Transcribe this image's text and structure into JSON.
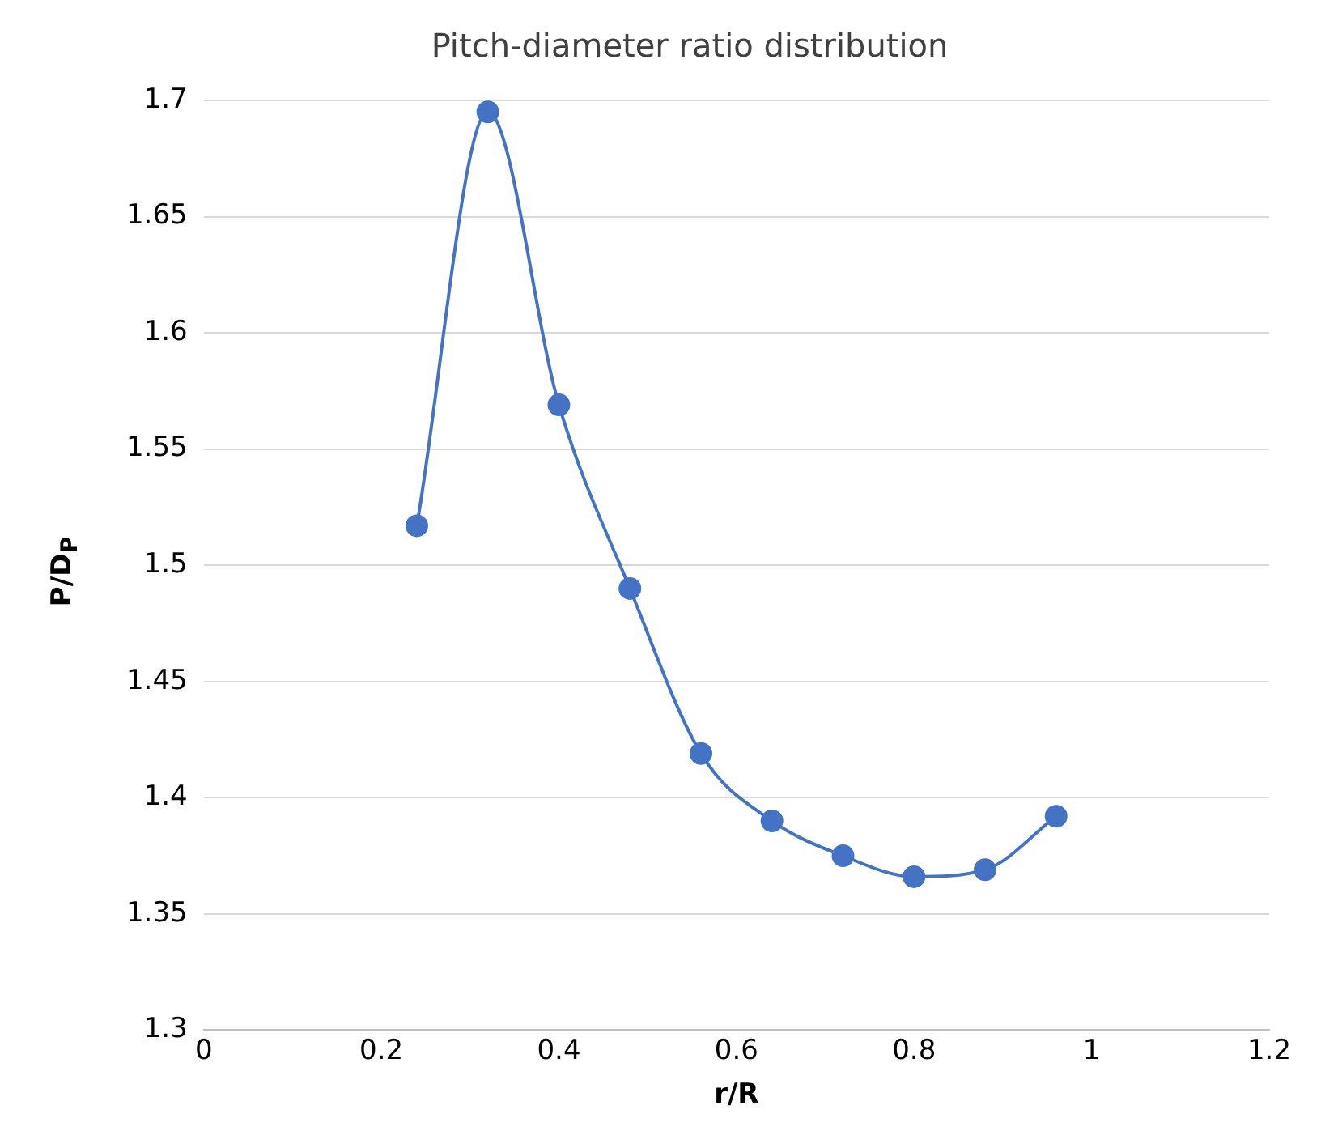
{
  "chart_data": {
    "type": "line",
    "title": "Pitch-diameter ratio distribution",
    "xlabel": "r/R",
    "ylabel": "P/D$_{P}$",
    "x": [
      0.24,
      0.32,
      0.4,
      0.48,
      0.56,
      0.64,
      0.72,
      0.8,
      0.88,
      0.96
    ],
    "series": [
      {
        "color": "#4472c4",
        "values": [
          1.517,
          1.695,
          1.569,
          1.49,
          1.419,
          1.39,
          1.375,
          1.366,
          1.369,
          1.392
        ]
      }
    ],
    "xlim": [
      0,
      1.2
    ],
    "xticks": [
      0,
      0.2,
      0.4,
      0.6,
      0.8,
      1,
      1.2
    ],
    "ylim": [
      1.3,
      1.7
    ],
    "yticks": [
      1.3,
      1.35,
      1.4,
      1.45,
      1.5,
      1.55,
      1.6,
      1.65,
      1.7
    ],
    "grid": "y",
    "legend": false,
    "marker": "circle",
    "line_style": "solid"
  }
}
